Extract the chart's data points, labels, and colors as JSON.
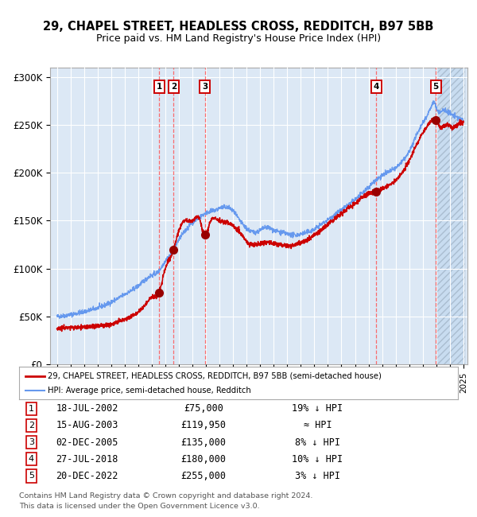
{
  "title": "29, CHAPEL STREET, HEADLESS CROSS, REDDITCH, B97 5BB",
  "subtitle": "Price paid vs. HM Land Registry's House Price Index (HPI)",
  "sale_prices": [
    75000,
    119950,
    135000,
    180000,
    255000
  ],
  "sale_labels": [
    "1",
    "2",
    "3",
    "4",
    "5"
  ],
  "hpi_line_color": "#6699EE",
  "sale_line_color": "#CC0000",
  "sale_dot_color": "#990000",
  "dashed_line_color": "#FF5555",
  "label_box_color": "#CC0000",
  "bg_color": "#DCE8F5",
  "grid_color": "#FFFFFF",
  "y_ticks": [
    0,
    50000,
    100000,
    150000,
    200000,
    250000,
    300000
  ],
  "y_labels": [
    "£0",
    "£50K",
    "£100K",
    "£150K",
    "£200K",
    "£250K",
    "£300K"
  ],
  "ylim": [
    0,
    310000
  ],
  "xlim_min": 1994.5,
  "xlim_max": 2025.3,
  "legend_line1": "29, CHAPEL STREET, HEADLESS CROSS, REDDITCH, B97 5BB (semi-detached house)",
  "legend_line2": "HPI: Average price, semi-detached house, Redditch",
  "table_rows": [
    [
      "1",
      "18-JUL-2002",
      "£75,000",
      "19% ↓ HPI"
    ],
    [
      "2",
      "15-AUG-2003",
      "£119,950",
      "≈ HPI"
    ],
    [
      "3",
      "02-DEC-2005",
      "£135,000",
      "8% ↓ HPI"
    ],
    [
      "4",
      "27-JUL-2018",
      "£180,000",
      "10% ↓ HPI"
    ],
    [
      "5",
      "20-DEC-2022",
      "£255,000",
      "3% ↓ HPI"
    ]
  ],
  "footer1": "Contains HM Land Registry data © Crown copyright and database right 2024.",
  "footer2": "This data is licensed under the Open Government Licence v3.0.",
  "sale_years": [
    2002.54,
    2003.62,
    2005.92,
    2018.57,
    2022.96
  ],
  "hatch_start": 2022.96,
  "hatch_end": 2025.1,
  "hpi_anchors_x": [
    1995.0,
    1996.0,
    1997.0,
    1998.0,
    1999.0,
    2000.0,
    2001.0,
    2001.5,
    2002.0,
    2002.5,
    2003.0,
    2003.5,
    2004.0,
    2004.5,
    2005.0,
    2005.5,
    2006.0,
    2006.5,
    2007.0,
    2007.5,
    2008.0,
    2008.5,
    2009.0,
    2009.5,
    2010.0,
    2010.5,
    2011.0,
    2011.5,
    2012.0,
    2012.5,
    2013.0,
    2013.5,
    2014.0,
    2014.5,
    2015.0,
    2015.5,
    2016.0,
    2016.5,
    2017.0,
    2017.5,
    2018.0,
    2018.5,
    2019.0,
    2019.5,
    2020.0,
    2020.5,
    2021.0,
    2021.5,
    2022.0,
    2022.5,
    2022.96,
    2023.0,
    2023.5,
    2024.0,
    2024.5,
    2025.0
  ],
  "hpi_anchors_y": [
    50000,
    52000,
    55000,
    59000,
    65000,
    73000,
    82000,
    88000,
    93000,
    97000,
    108000,
    117000,
    130000,
    140000,
    148000,
    153000,
    158000,
    160000,
    163000,
    164000,
    160000,
    150000,
    142000,
    138000,
    140000,
    143000,
    140000,
    138000,
    136000,
    135000,
    136000,
    138000,
    141000,
    146000,
    151000,
    156000,
    161000,
    166000,
    172000,
    178000,
    185000,
    192000,
    197000,
    201000,
    205000,
    212000,
    222000,
    238000,
    252000,
    265000,
    270000,
    268000,
    265000,
    262000,
    258000,
    255000
  ],
  "sale_anchors_x": [
    1995.0,
    1996.0,
    1997.0,
    1998.0,
    1999.0,
    2000.0,
    2001.0,
    2001.5,
    2002.0,
    2002.54,
    2003.0,
    2003.62,
    2004.0,
    2004.3,
    2004.6,
    2005.0,
    2005.5,
    2005.92,
    2006.3,
    2007.0,
    2007.5,
    2008.0,
    2008.5,
    2009.0,
    2009.5,
    2010.0,
    2010.5,
    2011.0,
    2011.5,
    2012.0,
    2012.5,
    2013.0,
    2013.5,
    2014.0,
    2014.5,
    2015.0,
    2015.5,
    2016.0,
    2016.5,
    2017.0,
    2017.5,
    2018.0,
    2018.57,
    2019.0,
    2019.5,
    2020.0,
    2020.5,
    2021.0,
    2021.5,
    2022.0,
    2022.5,
    2022.96,
    2023.3,
    2023.8,
    2024.2,
    2024.6,
    2025.0
  ],
  "sale_anchors_y": [
    38000,
    38500,
    39000,
    40000,
    42000,
    47000,
    55000,
    62000,
    70000,
    75000,
    100000,
    119950,
    140000,
    148000,
    150000,
    150000,
    152000,
    135000,
    148000,
    150000,
    148000,
    145000,
    138000,
    128000,
    125000,
    126000,
    128000,
    126000,
    125000,
    124000,
    125000,
    127000,
    130000,
    135000,
    140000,
    146000,
    152000,
    157000,
    163000,
    168000,
    174000,
    178000,
    180000,
    183000,
    187000,
    192000,
    200000,
    213000,
    228000,
    242000,
    252000,
    255000,
    248000,
    250000,
    247000,
    250000,
    252000
  ]
}
